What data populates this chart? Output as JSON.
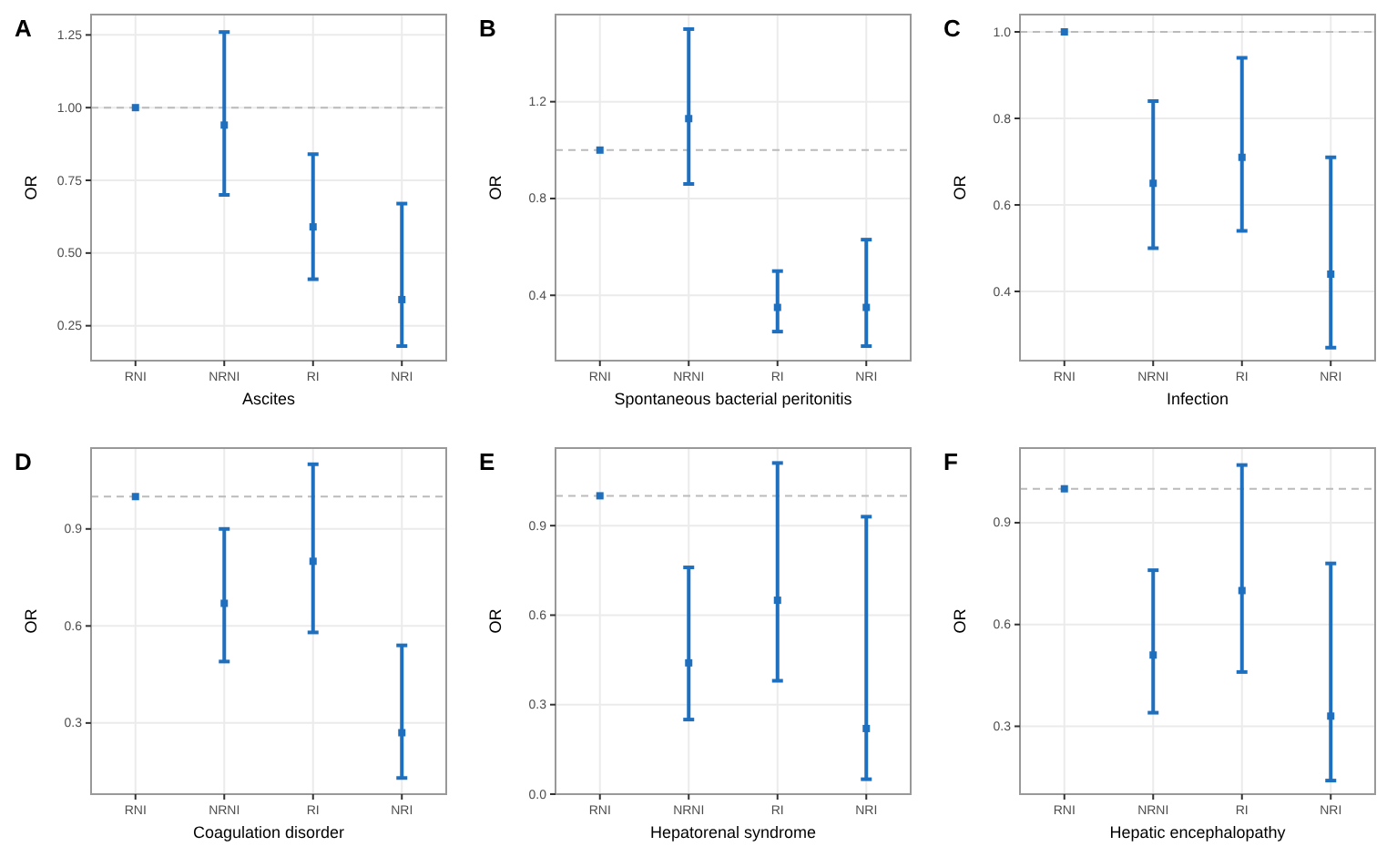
{
  "chart_data": [
    {
      "type": "scatter",
      "title": "A",
      "xlabel": "Ascites",
      "ylabel": "OR",
      "categories": [
        "RNI",
        "NRNI",
        "RI",
        "NRI"
      ],
      "series": [
        {
          "color": "#1f6fbf",
          "values": [
            1.0,
            0.94,
            0.59,
            0.34
          ],
          "errors": [
            null,
            [
              0.7,
              1.26
            ],
            [
              0.41,
              0.84
            ],
            [
              0.18,
              0.67
            ]
          ]
        }
      ],
      "ylim": [
        0.13,
        1.32
      ],
      "yticks": [
        {
          "value": 0.25,
          "label": "0.25"
        },
        {
          "value": 0.5,
          "label": "0.50"
        },
        {
          "value": 0.75,
          "label": "0.75"
        },
        {
          "value": 1,
          "label": "1.00"
        },
        {
          "value": 1.25,
          "label": "1.25"
        }
      ],
      "grid": true,
      "marker": "square",
      "ref_lines": [
        {
          "axis": "y",
          "value": 1,
          "line_style": "dashed",
          "color": "#bbbbbb"
        }
      ]
    },
    {
      "type": "scatter",
      "title": "B",
      "xlabel": "Spontaneous bacterial peritonitis",
      "ylabel": "OR",
      "categories": [
        "RNI",
        "NRNI",
        "RI",
        "NRI"
      ],
      "series": [
        {
          "color": "#1f6fbf",
          "values": [
            1.0,
            1.13,
            0.35,
            0.35
          ],
          "errors": [
            null,
            [
              0.86,
              1.5
            ],
            [
              0.25,
              0.5
            ],
            [
              0.19,
              0.63
            ]
          ]
        }
      ],
      "ylim": [
        0.13,
        1.56
      ],
      "yticks": [
        0.4,
        0.8,
        1.2
      ],
      "grid": true,
      "marker": "square",
      "ref_lines": [
        {
          "axis": "y",
          "value": 1,
          "line_style": "dashed",
          "color": "#bbbbbb"
        }
      ]
    },
    {
      "type": "scatter",
      "title": "C",
      "xlabel": "Infection",
      "ylabel": "OR",
      "categories": [
        "RNI",
        "NRNI",
        "RI",
        "NRI"
      ],
      "series": [
        {
          "color": "#1f6fbf",
          "values": [
            1.0,
            0.65,
            0.71,
            0.44
          ],
          "errors": [
            null,
            [
              0.5,
              0.84
            ],
            [
              0.54,
              0.94
            ],
            [
              0.27,
              0.71
            ]
          ]
        }
      ],
      "ylim": [
        0.24,
        1.04
      ],
      "yticks": [
        0.4,
        0.6,
        0.8,
        {
          "value": 1,
          "label": "1.0"
        }
      ],
      "grid": true,
      "marker": "square",
      "ref_lines": [
        {
          "axis": "y",
          "value": 1,
          "line_style": "dashed",
          "color": "#bbbbbb"
        }
      ]
    },
    {
      "type": "scatter",
      "title": "D",
      "xlabel": "Coagulation disorder",
      "ylabel": "OR",
      "categories": [
        "RNI",
        "NRNI",
        "RI",
        "NRI"
      ],
      "series": [
        {
          "color": "#1f6fbf",
          "values": [
            1.0,
            0.67,
            0.8,
            0.27
          ],
          "errors": [
            null,
            [
              0.49,
              0.9
            ],
            [
              0.58,
              1.1
            ],
            [
              0.13,
              0.54
            ]
          ]
        }
      ],
      "ylim": [
        0.08,
        1.15
      ],
      "yticks": [
        0.3,
        0.6,
        0.9
      ],
      "grid": true,
      "marker": "square",
      "ref_lines": [
        {
          "axis": "y",
          "value": 1,
          "line_style": "dashed",
          "color": "#bbbbbb"
        }
      ]
    },
    {
      "type": "scatter",
      "title": "E",
      "xlabel": "Hepatorenal syndrome",
      "ylabel": "OR",
      "categories": [
        "RNI",
        "NRNI",
        "RI",
        "NRI"
      ],
      "series": [
        {
          "color": "#1f6fbf",
          "values": [
            1.0,
            0.44,
            0.65,
            0.22
          ],
          "errors": [
            null,
            [
              0.25,
              0.76
            ],
            [
              0.38,
              1.11
            ],
            [
              0.05,
              0.93
            ]
          ]
        }
      ],
      "ylim": [
        0,
        1.16
      ],
      "yticks": [
        {
          "value": 0,
          "label": "0.0"
        },
        0.3,
        0.6,
        0.9
      ],
      "grid": true,
      "marker": "square",
      "ref_lines": [
        {
          "axis": "y",
          "value": 1,
          "line_style": "dashed",
          "color": "#bbbbbb"
        }
      ]
    },
    {
      "type": "scatter",
      "title": "F",
      "xlabel": "Hepatic encephalopathy",
      "ylabel": "OR",
      "categories": [
        "RNI",
        "NRNI",
        "RI",
        "NRI"
      ],
      "series": [
        {
          "color": "#1f6fbf",
          "values": [
            1.0,
            0.51,
            0.7,
            0.33
          ],
          "errors": [
            null,
            [
              0.34,
              0.76
            ],
            [
              0.46,
              1.07
            ],
            [
              0.14,
              0.78
            ]
          ]
        }
      ],
      "ylim": [
        0.1,
        1.12
      ],
      "yticks": [
        0.3,
        0.6,
        0.9
      ],
      "grid": true,
      "marker": "square",
      "ref_lines": [
        {
          "axis": "y",
          "value": 1,
          "line_style": "dashed",
          "color": "#bbbbbb"
        }
      ]
    }
  ]
}
